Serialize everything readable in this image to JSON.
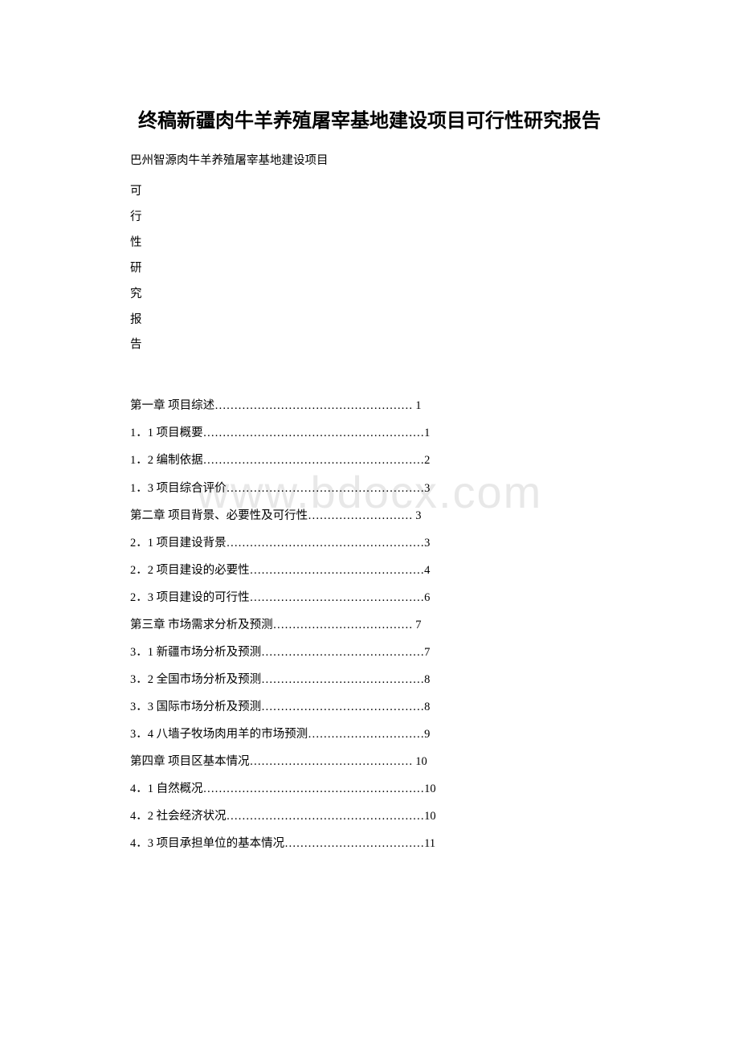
{
  "watermark_text": "www.bdocx.com",
  "title": "终稿新疆肉牛羊养殖屠宰基地建设项目可行性研究报告",
  "subtitle": "巴州智源肉牛羊养殖屠宰基地建设项目",
  "vertical_title_chars": [
    "可",
    "行",
    "性",
    "研",
    "究",
    "报",
    "告"
  ],
  "toc": [
    {
      "text": "第一章 项目综述…………………………………………… 1"
    },
    {
      "text": "1．1 项目概要…………………………………………………1"
    },
    {
      "text": "1．2 编制依据…………………………………………………2"
    },
    {
      "text": "1．3 项目综合评价……………………………………………3"
    },
    {
      "text": "第二章 项目背景、必要性及可行性……………………… 3"
    },
    {
      "text": "2．1 项目建设背景……………………………………………3"
    },
    {
      "text": "2．2 项目建设的必要性………………………………………4"
    },
    {
      "text": "2．3 项目建设的可行性………………………………………6"
    },
    {
      "text": "第三章 市场需求分析及预测……………………………… 7"
    },
    {
      "text": "3．1 新疆市场分析及预测……………………………………7"
    },
    {
      "text": "3．2 全国市场分析及预测……………………………………8"
    },
    {
      "text": "3．3 国际市场分析及预测……………………………………8"
    },
    {
      "text": "3．4 八墙子牧场肉用羊的市场预测…………………………9"
    },
    {
      "text": "第四章 项目区基本情况…………………………………… 10"
    },
    {
      "text": "4．1 自然概况…………………………………………………10"
    },
    {
      "text": "4．2 社会经济状况……………………………………………10"
    },
    {
      "text": "4．3 项目承担单位的基本情况………………………………11"
    }
  ]
}
